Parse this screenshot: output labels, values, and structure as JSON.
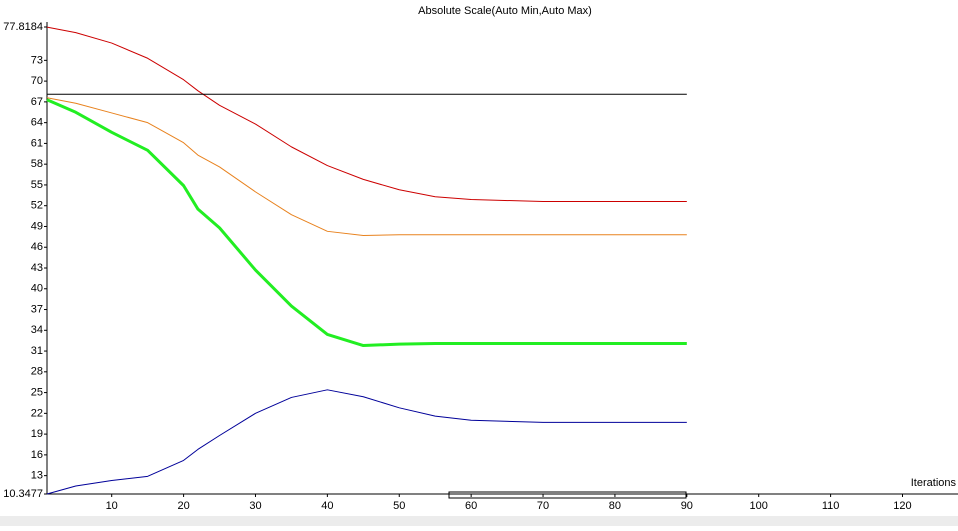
{
  "chart_data": {
    "type": "line",
    "title": "Absolute Scale(Auto Min,Auto Max)",
    "x_label": "Iterations",
    "x": [
      1,
      5,
      10,
      15,
      20,
      22,
      25,
      30,
      35,
      40,
      45,
      50,
      55,
      60,
      70,
      80,
      90
    ],
    "series": [
      {
        "color": "#cc0000",
        "linewidth": 1,
        "values": [
          77.8,
          77,
          75.5,
          73.3,
          70.2,
          68.6,
          66.5,
          63.8,
          60.5,
          57.8,
          55.8,
          54.3,
          53.3,
          52.9,
          52.6,
          52.6,
          52.6
        ]
      },
      {
        "color": "#000000",
        "linewidth": 1,
        "values": [
          68.1,
          68.1,
          68.1,
          68.1,
          68.1,
          68.1,
          68.1,
          68.1,
          68.1,
          68.1,
          68.1,
          68.1,
          68.1,
          68.1,
          68.1,
          68.1,
          68.1
        ]
      },
      {
        "color": "#e8821e",
        "linewidth": 1,
        "values": [
          67.6,
          66.8,
          65.4,
          64,
          61.1,
          59.3,
          57.6,
          54,
          50.7,
          48.3,
          47.7,
          47.8,
          47.8,
          47.8,
          47.8,
          47.8,
          47.8
        ]
      },
      {
        "color": "#22ee22",
        "linewidth": 3,
        "values": [
          67.3,
          65.5,
          62.6,
          60,
          54.9,
          51.5,
          48.8,
          42.7,
          37.5,
          33.4,
          31.8,
          32,
          32.1,
          32.1,
          32.1,
          32.1,
          32.1
        ]
      },
      {
        "color": "#000099",
        "linewidth": 1,
        "values": [
          10.35,
          11.5,
          12.3,
          12.9,
          15.2,
          16.8,
          18.8,
          22,
          24.3,
          25.4,
          24.4,
          22.8,
          21.6,
          21,
          20.7,
          20.7,
          20.7
        ]
      }
    ],
    "xlim": [
      1,
      128
    ],
    "ylim": [
      10.3477,
      77.8184
    ],
    "xticks": [
      10,
      20,
      30,
      40,
      50,
      60,
      70,
      80,
      90,
      100,
      110,
      120
    ],
    "yticks": [
      10.3477,
      13,
      16,
      19,
      22,
      25,
      28,
      31,
      34,
      37,
      40,
      43,
      46,
      49,
      52,
      55,
      58,
      61,
      64,
      67,
      70,
      73,
      77.8184
    ],
    "grid": false
  }
}
